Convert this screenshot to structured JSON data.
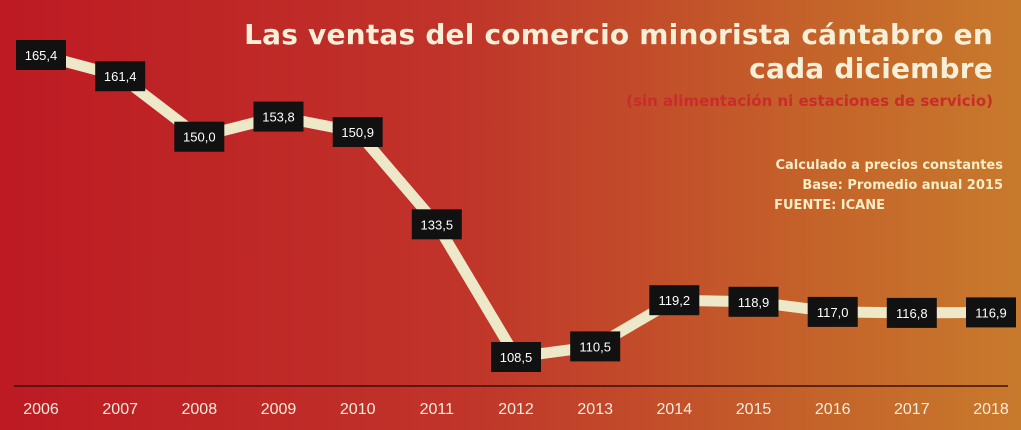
{
  "header": {
    "title": "Las ventas del comercio minorista cántabro en cada diciembre",
    "subtitle": "(sin alimentación ni estaciones de servicio)"
  },
  "notes": {
    "line1": "Calculado a precios constantes",
    "line2": "Base: Promedio anual 2015",
    "line3": "FUENTE: ICANE"
  },
  "colors": {
    "line": "#ece8c8",
    "label_bg": "#111111",
    "label_text": "#ffffff",
    "axis": "#3a0f0a",
    "tick_text": "#f4eedc"
  },
  "chart_data": {
    "type": "line",
    "title": "Las ventas del comercio minorista cántabro en cada diciembre",
    "subtitle": "(sin alimentación ni estaciones de servicio)",
    "xlabel": "",
    "ylabel": "",
    "categories": [
      "2006",
      "2007",
      "2008",
      "2009",
      "2010",
      "2011",
      "2012",
      "2013",
      "2014",
      "2015",
      "2016",
      "2017",
      "2018"
    ],
    "values": [
      165.4,
      161.4,
      150.0,
      153.8,
      150.9,
      133.5,
      108.5,
      110.5,
      119.2,
      118.9,
      117.0,
      116.8,
      116.9
    ],
    "value_labels": [
      "165,4",
      "161,4",
      "150,0",
      "153,8",
      "150,9",
      "133,5",
      "108,5",
      "110,5",
      "119,2",
      "118,9",
      "117,0",
      "116,8",
      "116,9"
    ],
    "grid": false,
    "legend": "none"
  }
}
